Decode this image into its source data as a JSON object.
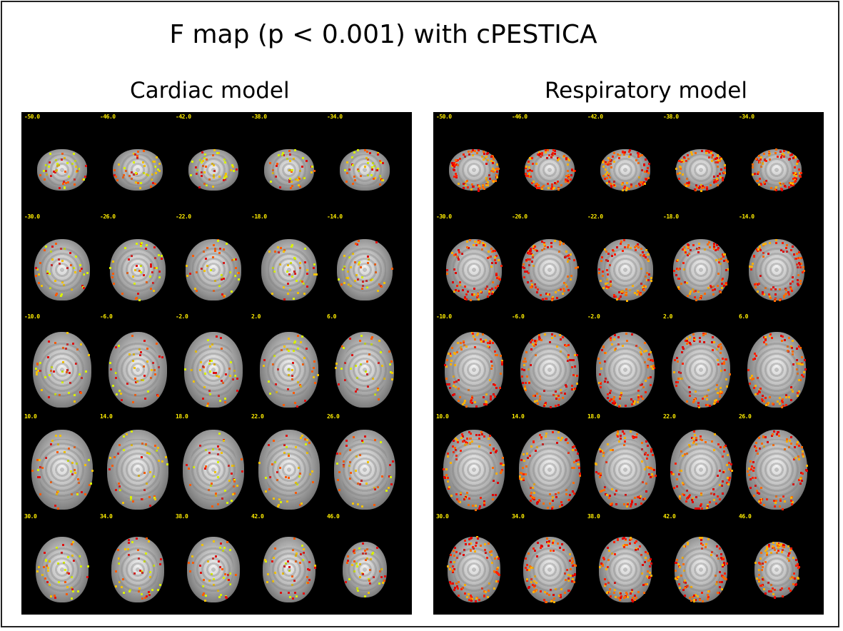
{
  "title": "F map (p < 0.001) with cPESTICA",
  "panels": [
    {
      "title": "Cardiac model",
      "overlay_colors": [
        "#d9f200",
        "#f2c200",
        "#ff5a00",
        "#e01010"
      ],
      "overlay_level": 0.28,
      "slice_labels": [
        "-50.0",
        "-46.0",
        "-42.0",
        "-38.0",
        "-34.0",
        "-30.0",
        "-26.0",
        "-22.0",
        "-18.0",
        "-14.0",
        "-10.0",
        "-6.0",
        "-2.0",
        "2.0",
        "6.0",
        "10.0",
        "14.0",
        "18.0",
        "22.0",
        "26.0",
        "30.0",
        "34.0",
        "38.0",
        "42.0",
        "46.0"
      ]
    },
    {
      "title": "Respiratory model",
      "overlay_colors": [
        "#ff2000",
        "#e00000",
        "#ff6a00",
        "#ffb000"
      ],
      "overlay_level": 0.6,
      "slice_labels": [
        "-50.0",
        "-46.0",
        "-42.0",
        "-38.0",
        "-34.0",
        "-30.0",
        "-26.0",
        "-22.0",
        "-18.0",
        "-14.0",
        "-10.0",
        "-6.0",
        "-2.0",
        "2.0",
        "6.0",
        "10.0",
        "14.0",
        "18.0",
        "22.0",
        "26.0",
        "30.0",
        "34.0",
        "38.0",
        "42.0",
        "46.0"
      ]
    }
  ]
}
